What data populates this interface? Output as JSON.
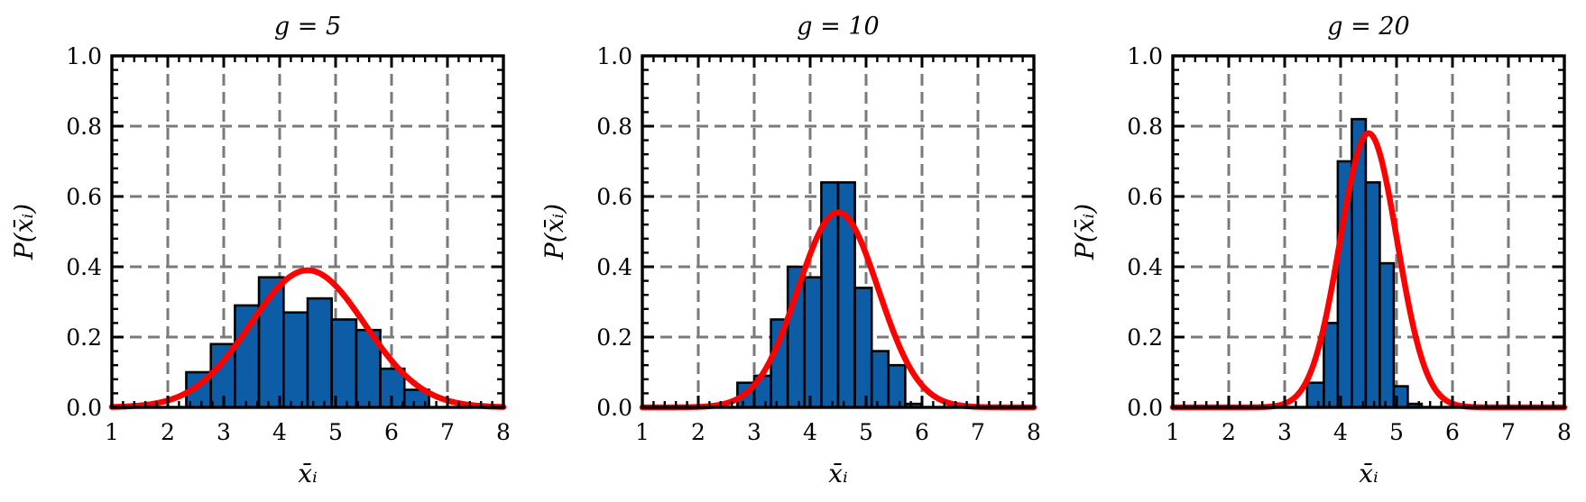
{
  "chart_data": [
    {
      "type": "bar",
      "title": "g = 5",
      "xlabel": "x̄ᵢ",
      "ylabel": "P(x̄ᵢ)",
      "xlim": [
        1,
        8
      ],
      "ylim": [
        0,
        1.0
      ],
      "xticks": [
        "1",
        "2",
        "3",
        "4",
        "5",
        "6",
        "7",
        "8"
      ],
      "yticks": [
        "0.0",
        "0.2",
        "0.4",
        "0.6",
        "0.8",
        "1.0"
      ],
      "grid": true,
      "histogram": {
        "bin_edges": [
          2.33,
          2.77,
          3.2,
          3.63,
          4.07,
          4.5,
          4.93,
          5.37,
          5.8,
          6.23,
          6.67,
          7.1
        ],
        "values": [
          0.1,
          0.18,
          0.29,
          0.37,
          0.27,
          0.31,
          0.25,
          0.22,
          0.11,
          0.05,
          0.0
        ]
      },
      "fit_curve": {
        "type": "gaussian",
        "mean": 4.5,
        "peak": 0.39,
        "color": "#ff0000"
      },
      "bar_color": "#0c5da5"
    },
    {
      "type": "bar",
      "title": "g = 10",
      "xlabel": "x̄ᵢ",
      "ylabel": "P(x̄ᵢ)",
      "xlim": [
        1,
        8
      ],
      "ylim": [
        0,
        1.0
      ],
      "xticks": [
        "1",
        "2",
        "3",
        "4",
        "5",
        "6",
        "7",
        "8"
      ],
      "yticks": [
        "0.0",
        "0.2",
        "0.4",
        "0.6",
        "0.8",
        "1.0"
      ],
      "grid": true,
      "histogram": {
        "bin_edges": [
          2.7,
          3.0,
          3.3,
          3.6,
          3.9,
          4.2,
          4.5,
          4.8,
          5.1,
          5.4,
          5.7,
          6.0
        ],
        "values": [
          0.07,
          0.09,
          0.25,
          0.4,
          0.37,
          0.64,
          0.64,
          0.34,
          0.16,
          0.12,
          0.01
        ]
      },
      "fit_curve": {
        "type": "gaussian",
        "mean": 4.5,
        "peak": 0.555,
        "color": "#ff0000"
      },
      "bar_color": "#0c5da5"
    },
    {
      "type": "bar",
      "title": "g = 20",
      "xlabel": "x̄ᵢ",
      "ylabel": "P(x̄ᵢ)",
      "xlim": [
        1,
        8
      ],
      "ylim": [
        0,
        1.0
      ],
      "xticks": [
        "1",
        "2",
        "3",
        "4",
        "5",
        "6",
        "7",
        "8"
      ],
      "yticks": [
        "0.0",
        "0.2",
        "0.4",
        "0.6",
        "0.8",
        "1.0"
      ],
      "grid": true,
      "histogram": {
        "bin_edges": [
          3.4,
          3.7,
          3.95,
          4.2,
          4.45,
          4.7,
          4.95,
          5.2,
          5.45,
          5.6
        ],
        "values": [
          0.07,
          0.24,
          0.7,
          0.82,
          0.64,
          0.41,
          0.06,
          0.01,
          0.0
        ]
      },
      "fit_curve": {
        "type": "gaussian",
        "mean": 4.5,
        "peak": 0.78,
        "color": "#ff0000"
      },
      "bar_color": "#0c5da5"
    }
  ]
}
